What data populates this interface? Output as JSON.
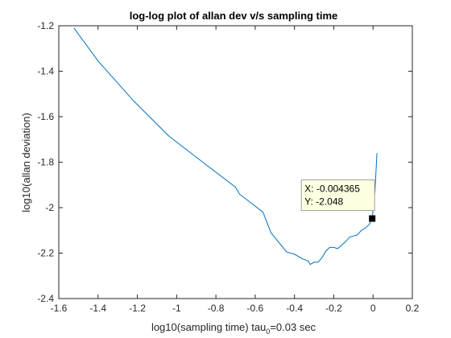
{
  "chart_data": {
    "type": "line",
    "title": "log-log plot of allan dev v/s sampling time",
    "xlabel_main": "log10(sampling time) tau",
    "xlabel_sub": "0",
    "xlabel_rest": "=0.03 sec",
    "ylabel": "log10(allan deviation)",
    "xlim": [
      -1.6,
      0.2
    ],
    "ylim": [
      -2.4,
      -1.2
    ],
    "xticks": [
      "-1.6",
      "-1.4",
      "-1.2",
      "-1",
      "-0.8",
      "-0.6",
      "-0.4",
      "-0.2",
      "0",
      "0.2"
    ],
    "yticks": [
      "-1.2",
      "-1.4",
      "-1.6",
      "-1.8",
      "-2",
      "-2.2",
      "-2.4"
    ],
    "grid": false,
    "series": [
      {
        "color": "#0072BD",
        "x": [
          -1.523,
          -1.4,
          -1.22,
          -1.04,
          -0.86,
          -0.7,
          -0.68,
          -0.56,
          -0.52,
          -0.44,
          -0.4,
          -0.36,
          -0.33,
          -0.32,
          -0.3,
          -0.28,
          -0.26,
          -0.24,
          -0.22,
          -0.2,
          -0.18,
          -0.16,
          -0.14,
          -0.12,
          -0.1,
          -0.08,
          -0.06,
          -0.04,
          -0.02,
          -0.004365,
          0.01,
          0.02
        ],
        "y": [
          -1.21,
          -1.355,
          -1.53,
          -1.685,
          -1.805,
          -1.91,
          -1.94,
          -2.02,
          -2.11,
          -2.195,
          -2.205,
          -2.225,
          -2.235,
          -2.25,
          -2.24,
          -2.24,
          -2.22,
          -2.19,
          -2.175,
          -2.175,
          -2.18,
          -2.165,
          -2.15,
          -2.13,
          -2.125,
          -2.12,
          -2.1,
          -2.09,
          -2.075,
          -2.048,
          -1.92,
          -1.76
        ]
      }
    ],
    "datatip": {
      "x_text": "X: -0.004365",
      "y_text": "Y: -2.048",
      "x": -0.004365,
      "y": -2.048
    }
  }
}
